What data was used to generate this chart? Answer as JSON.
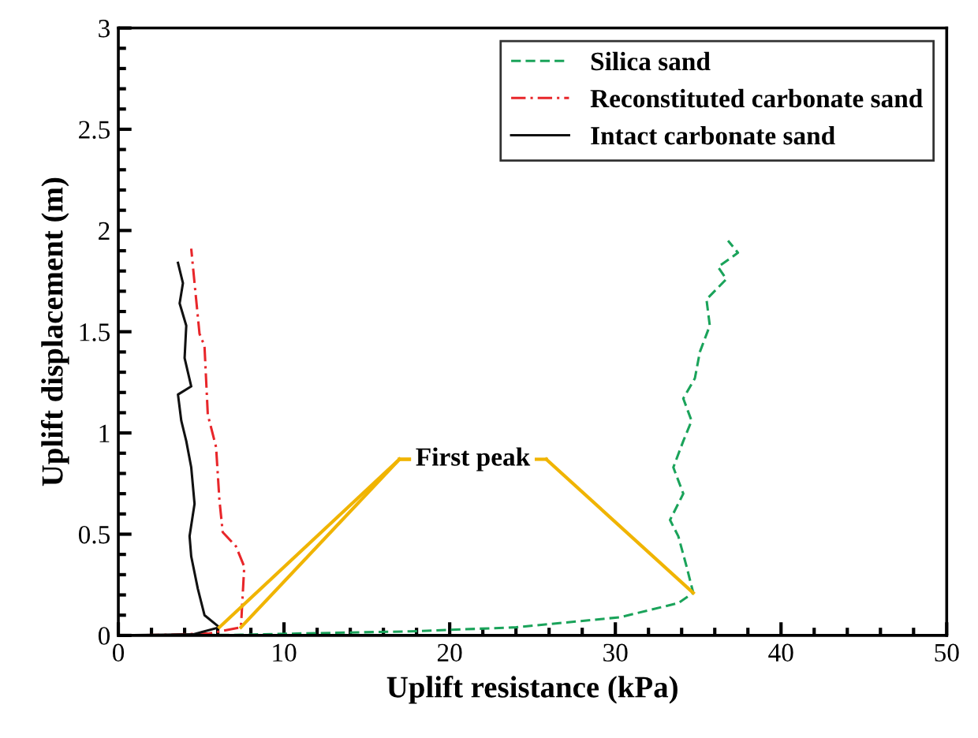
{
  "chart_data": {
    "type": "line",
    "xlabel": "Uplift resistance (kPa)",
    "ylabel": "Uplift displacement (m)",
    "xlim": [
      0,
      50
    ],
    "xticks": [
      0,
      10,
      20,
      30,
      40,
      50
    ],
    "ylim": [
      0,
      3
    ],
    "yticks": [
      0,
      0.5,
      1,
      1.5,
      2,
      2.5,
      3
    ],
    "grid": false,
    "legend": "top right",
    "marker": "none",
    "series": [
      {
        "name": "Silica sand",
        "color": "#1aa35a",
        "line_style": "dashed",
        "x": [
          0,
          7.4,
          11.2,
          17.6,
          24.0,
          30.3,
          33.8,
          34.7,
          34.3,
          33.8,
          33.3,
          34.1,
          33.5,
          34.1,
          34.6,
          34.1,
          34.8,
          35.1,
          35.7,
          35.5,
          36.7,
          36.2,
          37.4,
          36.8
        ],
        "values": [
          0,
          0.003,
          0.01,
          0.02,
          0.04,
          0.09,
          0.16,
          0.21,
          0.34,
          0.49,
          0.57,
          0.7,
          0.83,
          0.96,
          1.06,
          1.17,
          1.27,
          1.4,
          1.53,
          1.66,
          1.76,
          1.82,
          1.89,
          1.95
        ]
      },
      {
        "name": "Reconstituted carbonate sand",
        "color": "#e8262a",
        "line_style": "dashed",
        "x": [
          0,
          3.0,
          5.5,
          7.4,
          7.6,
          7.1,
          6.3,
          6.1,
          5.9,
          5.4,
          5.2,
          4.9,
          4.6,
          4.4
        ],
        "values": [
          0,
          0.003,
          0.01,
          0.04,
          0.34,
          0.44,
          0.51,
          0.67,
          0.93,
          1.09,
          1.43,
          1.49,
          1.74,
          1.91
        ]
      },
      {
        "name": "Intact carbonate sand",
        "color": "#111111",
        "line_style": "solid",
        "x": [
          0,
          4.5,
          6.1,
          5.2,
          4.8,
          4.4,
          4.3,
          4.6,
          4.4,
          4.1,
          3.8,
          3.6,
          4.4,
          4.0,
          4.1,
          3.7,
          3.9,
          3.6
        ],
        "values": [
          0,
          0.005,
          0.04,
          0.1,
          0.23,
          0.39,
          0.49,
          0.65,
          0.83,
          0.96,
          1.06,
          1.19,
          1.23,
          1.37,
          1.53,
          1.64,
          1.74,
          1.84
        ]
      }
    ],
    "annotations": [
      {
        "text": "First peak",
        "x": 34.7,
        "y": 0.21
      }
    ]
  }
}
